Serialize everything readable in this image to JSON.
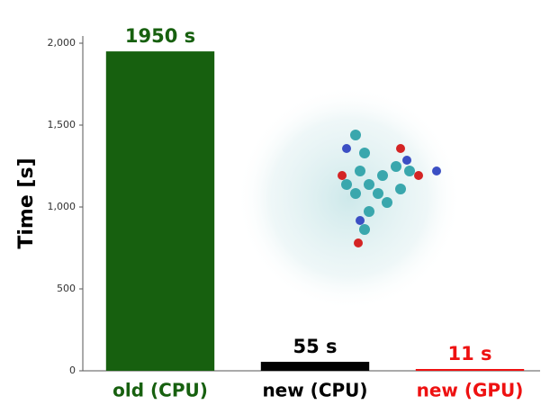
{
  "chart_data": {
    "type": "bar",
    "y_label": "Time [s]",
    "categories": [
      "old (CPU)",
      "new (CPU)",
      "new (GPU)"
    ],
    "values": [
      1950,
      55,
      11
    ],
    "value_labels": [
      "1950 s",
      "55 s",
      "11 s"
    ],
    "colors": [
      "#17600f",
      "#000000",
      "#ee1111"
    ],
    "ylim": [
      0,
      2000
    ],
    "yticks": [
      0,
      500,
      {
        "value": 1000,
        "label": "1,000"
      },
      {
        "value": 1500,
        "label": "1,500"
      },
      {
        "value": 2000,
        "label": "2,000"
      }
    ]
  }
}
